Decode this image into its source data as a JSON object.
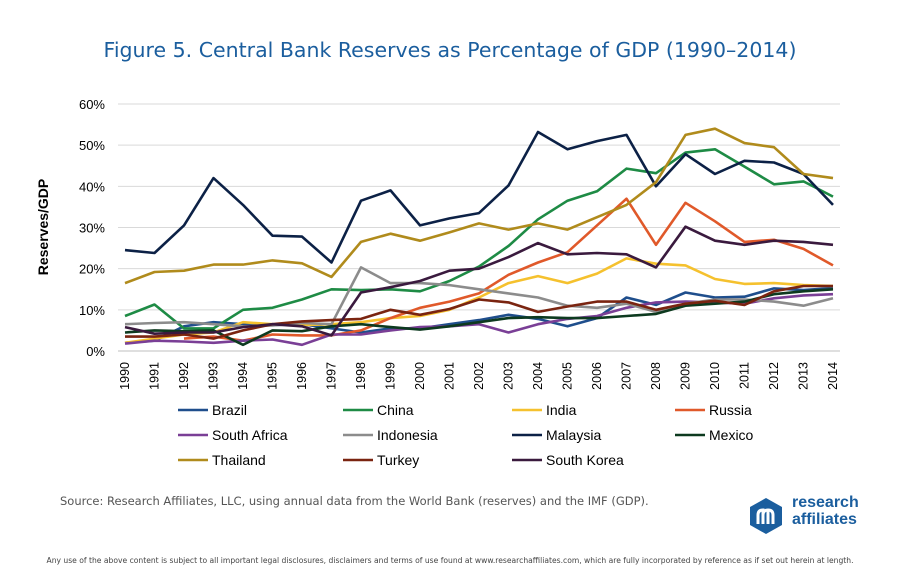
{
  "title": "Figure 5. Central Bank Reserves as Percentage of GDP (1990–2014)",
  "source": "Source: Research Affiliates, LLC, using annual data from the World Bank (reserves) and the IMF (GDP).",
  "disclaimer": "Any use of the above content is subject to all important legal disclosures, disclaimers and terms of use found at www.researchaffiliates.com, which are fully incorporated by reference as if set out herein at length.",
  "logo": {
    "line1": "research",
    "line2": "affiliates"
  },
  "chart_data": {
    "type": "line",
    "title": "Figure 5. Central Bank Reserves as Percentage of GDP (1990–2014)",
    "xlabel": "",
    "ylabel": "Reserves/GDP",
    "ylim": [
      0,
      60
    ],
    "yticks": [
      0,
      10,
      20,
      30,
      40,
      50,
      60
    ],
    "ytick_labels": [
      "0%",
      "10%",
      "20%",
      "30%",
      "40%",
      "50%",
      "60%"
    ],
    "grid": true,
    "legend_position": "bottom",
    "x": [
      "1990",
      "1991",
      "1992",
      "1993",
      "1994",
      "1995",
      "1996",
      "1997",
      "1998",
      "1999",
      "2000",
      "2001",
      "2002",
      "2003",
      "2004",
      "2005",
      "2006",
      "2007",
      "2008",
      "2009",
      "2010",
      "2011",
      "2012",
      "2013",
      "2014"
    ],
    "series": [
      {
        "name": "Brazil",
        "color": "#1f4e8c",
        "values": [
          2.0,
          2.5,
          6.0,
          7.0,
          6.5,
          6.3,
          6.5,
          5.5,
          4.5,
          5.5,
          5.5,
          6.5,
          7.5,
          8.8,
          7.8,
          6.0,
          8.0,
          13.0,
          11.2,
          14.2,
          13.0,
          13.2,
          15.2,
          14.8,
          15.3
        ]
      },
      {
        "name": "China",
        "color": "#1e8b45",
        "values": [
          8.5,
          11.3,
          5.5,
          5.5,
          10.0,
          10.5,
          12.5,
          15.0,
          14.8,
          15.0,
          14.5,
          17.0,
          20.5,
          25.5,
          32.0,
          36.5,
          38.8,
          44.3,
          43.2,
          48.2,
          49.0,
          44.8,
          40.5,
          41.2,
          37.5
        ]
      },
      {
        "name": "India",
        "color": "#f5c12e",
        "values": [
          2.0,
          3.0,
          4.0,
          4.5,
          7.0,
          6.5,
          6.3,
          6.5,
          7.0,
          8.0,
          8.5,
          10.0,
          13.0,
          16.5,
          18.2,
          16.5,
          18.8,
          22.5,
          21.2,
          20.8,
          17.5,
          16.3,
          16.5,
          16.0,
          15.8
        ]
      },
      {
        "name": "Russia",
        "color": "#e0592a",
        "values": [
          null,
          null,
          3.0,
          3.5,
          2.5,
          4.0,
          3.8,
          3.8,
          5.0,
          8.0,
          10.5,
          12.0,
          14.0,
          18.5,
          21.5,
          24.0,
          30.5,
          37.0,
          25.8,
          36.0,
          31.5,
          26.5,
          27.0,
          24.8,
          20.8
        ]
      },
      {
        "name": "South Africa",
        "color": "#7a3f96",
        "values": [
          1.8,
          2.5,
          2.3,
          2.0,
          2.5,
          2.8,
          1.5,
          4.0,
          4.0,
          5.0,
          5.8,
          6.0,
          6.5,
          4.5,
          6.5,
          7.8,
          8.5,
          10.5,
          11.8,
          12.0,
          11.8,
          11.5,
          12.8,
          13.5,
          13.8
        ]
      },
      {
        "name": "Indonesia",
        "color": "#8c8c8c",
        "values": [
          6.5,
          6.8,
          7.0,
          6.5,
          6.0,
          6.2,
          6.8,
          6.5,
          20.3,
          16.5,
          16.5,
          16.0,
          15.0,
          14.0,
          13.0,
          11.0,
          10.5,
          11.5,
          9.5,
          11.5,
          12.5,
          12.5,
          12.0,
          11.0,
          12.8
        ]
      },
      {
        "name": "Malaysia",
        "color": "#0c2146",
        "values": [
          24.5,
          23.8,
          30.5,
          42.0,
          35.5,
          28.0,
          27.8,
          21.5,
          36.5,
          39.0,
          30.5,
          32.2,
          33.5,
          40.2,
          53.2,
          49.0,
          51.0,
          52.5,
          40.0,
          47.8,
          43.0,
          46.2,
          45.8,
          43.0,
          35.5
        ]
      },
      {
        "name": "Mexico",
        "color": "#0d3a1f",
        "values": [
          4.5,
          5.0,
          4.8,
          5.0,
          1.5,
          5.0,
          4.8,
          6.0,
          6.5,
          5.8,
          5.2,
          6.0,
          7.0,
          8.0,
          8.2,
          8.0,
          8.0,
          8.5,
          9.0,
          11.0,
          11.5,
          12.0,
          13.8,
          14.5,
          15.0
        ]
      },
      {
        "name": "Thailand",
        "color": "#b08b1c",
        "values": [
          16.5,
          19.2,
          19.5,
          21.0,
          21.0,
          22.0,
          21.3,
          18.0,
          26.5,
          28.5,
          26.8,
          28.8,
          31.0,
          29.5,
          31.0,
          29.5,
          32.5,
          35.5,
          41.0,
          52.5,
          54.0,
          50.5,
          49.5,
          43.0,
          42.0
        ]
      },
      {
        "name": "Turkey",
        "color": "#7a2410",
        "values": [
          3.5,
          3.5,
          4.0,
          3.0,
          5.0,
          6.5,
          7.2,
          7.5,
          7.8,
          10.0,
          8.8,
          10.2,
          12.5,
          11.8,
          9.5,
          10.8,
          12.0,
          12.0,
          10.0,
          11.5,
          12.2,
          11.2,
          14.5,
          15.8,
          15.8
        ]
      },
      {
        "name": "South Korea",
        "color": "#3a1a3e",
        "values": [
          5.8,
          4.2,
          4.5,
          4.5,
          5.8,
          6.5,
          6.0,
          3.8,
          14.2,
          15.5,
          17.0,
          19.5,
          20.0,
          22.8,
          26.2,
          23.5,
          23.8,
          23.5,
          20.3,
          30.2,
          26.8,
          25.8,
          26.8,
          26.5,
          25.8
        ]
      }
    ]
  }
}
